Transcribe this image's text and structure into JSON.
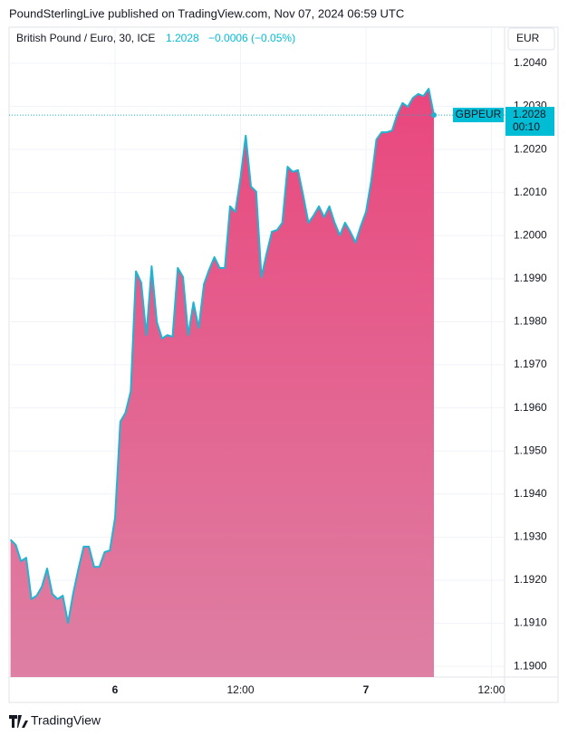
{
  "header": "PoundSterlingLive published on TradingView.com, Nov 07, 2024 06:59 UTC",
  "footer": "TradingView",
  "chart_data": {
    "type": "area",
    "title": "British Pound / Euro, 30, ICE",
    "change": "−0.0006 (−0.05%)",
    "currency": "EUR",
    "symbol": "GBPEUR",
    "countdown": "00:10",
    "x": [
      -10,
      -9.5,
      -9,
      -8.5,
      -8,
      -7.5,
      -7,
      -6.5,
      -6,
      -5.5,
      -5,
      -4.5,
      -4,
      -3.5,
      -3,
      -2.5,
      -2,
      -1.5,
      -1,
      -0.5,
      0,
      0.5,
      1,
      1.5,
      2,
      2.5,
      3,
      3.5,
      4,
      4.5,
      5,
      5.5,
      6,
      6.5,
      7,
      7.5,
      8,
      8.5,
      9,
      9.5,
      10,
      10.5,
      11,
      11.5,
      12,
      12.5,
      13,
      13.5,
      14,
      14.5,
      15,
      15.5,
      16,
      16.5,
      17,
      17.5,
      18,
      18.5,
      19,
      19.5,
      20,
      20.5,
      21,
      21.5,
      22,
      22.5,
      23,
      23.5,
      24,
      24.5,
      25,
      25.5,
      26,
      26.5,
      27,
      27.5,
      28,
      28.5,
      29,
      29.5,
      30,
      30.5
    ],
    "series": [
      {
        "name": "GBPEUR",
        "color": "#1fb4d1",
        "fill_top": "#e9477d",
        "fill_bottom": "#de7fa3",
        "values": [
          1.19294,
          1.19282,
          1.19244,
          1.19252,
          1.19156,
          1.19164,
          1.19185,
          1.19227,
          1.19168,
          1.19156,
          1.19164,
          1.19101,
          1.1917,
          1.19227,
          1.19278,
          1.19278,
          1.19231,
          1.19231,
          1.19265,
          1.19269,
          1.19345,
          1.19568,
          1.19589,
          1.19639,
          1.19917,
          1.19891,
          1.19769,
          1.19929,
          1.19799,
          1.19761,
          1.19769,
          1.19765,
          1.19925,
          1.19904,
          1.19769,
          1.19845,
          1.19786,
          1.19887,
          1.19921,
          1.1995,
          1.19925,
          1.19925,
          1.20068,
          1.20055,
          1.20135,
          1.20232,
          1.20114,
          1.20102,
          1.19904,
          1.19959,
          1.20009,
          1.20013,
          1.2003,
          1.2016,
          1.20148,
          1.20152,
          1.20093,
          1.2003,
          1.20047,
          1.20068,
          1.20043,
          1.20068,
          1.2003,
          1.20001,
          1.2003,
          1.20009,
          1.19984,
          1.20022,
          1.20055,
          1.20127,
          1.20223,
          1.2024,
          1.2024,
          1.20244,
          1.20282,
          1.20308,
          1.20299,
          1.2032,
          1.20329,
          1.20324,
          1.20341,
          1.2028
        ]
      }
    ],
    "xlim": [
      -10.14,
      37.26
    ],
    "xticks": [
      {
        "value": 0,
        "label": "6"
      },
      {
        "value": 12,
        "label": "12:00"
      },
      {
        "value": 24,
        "label": "7"
      },
      {
        "value": 36,
        "label": "12:00"
      }
    ],
    "ylim": [
      1.18975,
      1.20484
    ],
    "yticks": [
      {
        "value": 1.19,
        "label": "1.1900"
      },
      {
        "value": 1.191,
        "label": "1.1910"
      },
      {
        "value": 1.192,
        "label": "1.1920"
      },
      {
        "value": 1.193,
        "label": "1.1930"
      },
      {
        "value": 1.194,
        "label": "1.1940"
      },
      {
        "value": 1.195,
        "label": "1.1950"
      },
      {
        "value": 1.196,
        "label": "1.1960"
      },
      {
        "value": 1.197,
        "label": "1.1970"
      },
      {
        "value": 1.198,
        "label": "1.1980"
      },
      {
        "value": 1.199,
        "label": "1.1990"
      },
      {
        "value": 1.2,
        "label": "1.2000"
      },
      {
        "value": 1.201,
        "label": "1.2010"
      },
      {
        "value": 1.202,
        "label": "1.2020"
      },
      {
        "value": 1.203,
        "label": "1.2030"
      },
      {
        "value": 1.204,
        "label": "1.2040"
      }
    ],
    "grid": true,
    "accent": "#00bcd4",
    "change_color": "#22ab94"
  }
}
